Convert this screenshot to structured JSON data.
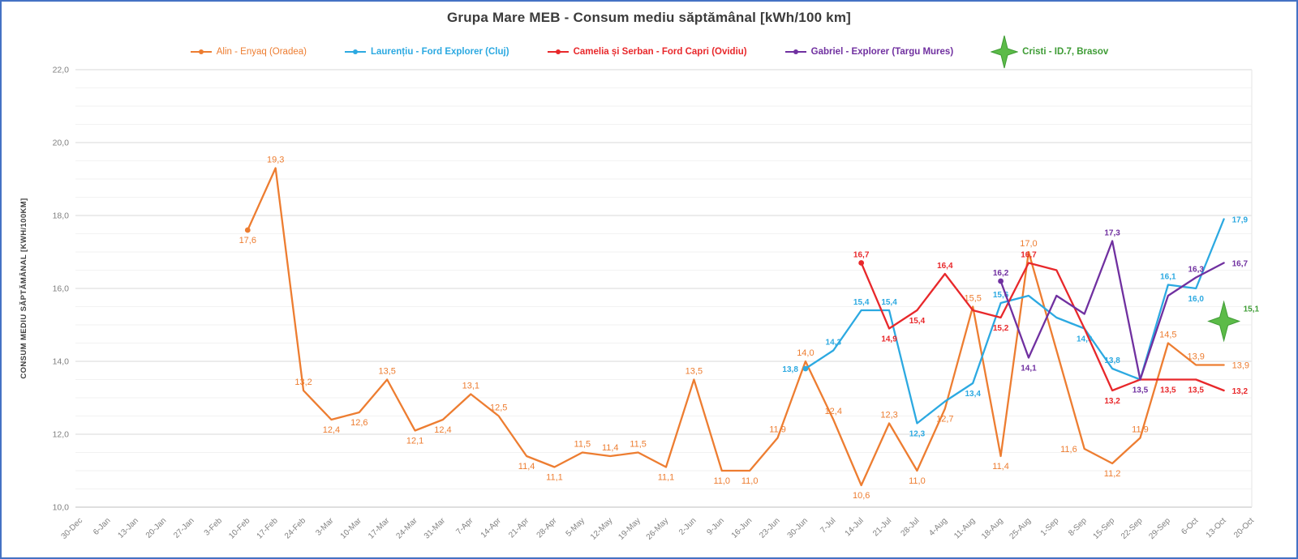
{
  "title": "Grupa Mare MEB - Consum mediu săptămânal [kWh/100 km]",
  "frame": {
    "border_color": "#4472C4"
  },
  "chart_data": {
    "type": "line",
    "title": "Grupa Mare MEB - Consum mediu săptămânal [kWh/100 km]",
    "xlabel": "",
    "ylabel": "CONSUM MEDIU SĂPTĂMÂNAL [KWH/100KM]",
    "ylim": [
      10,
      22
    ],
    "y_major_step": 2,
    "y_minor_step": 0.5,
    "y_tick_labels": [
      "22,0",
      "20,0",
      "18,0",
      "16,0",
      "14,0",
      "12,0",
      "10,0"
    ],
    "decimal_separator": "comma",
    "grid": "horizontal-major-and-minor",
    "legend_position": "top",
    "categories": [
      "30-Dec",
      "6-Jan",
      "13-Jan",
      "20-Jan",
      "27-Jan",
      "3-Feb",
      "10-Feb",
      "17-Feb",
      "24-Feb",
      "3-Mar",
      "10-Mar",
      "17-Mar",
      "24-Mar",
      "31-Mar",
      "7-Apr",
      "14-Apr",
      "21-Apr",
      "28-Apr",
      "5-May",
      "12-May",
      "19-May",
      "26-May",
      "2-Jun",
      "9-Jun",
      "16-Jun",
      "23-Jun",
      "30-Jun",
      "7-Jul",
      "14-Jul",
      "21-Jul",
      "28-Jul",
      "4-Aug",
      "11-Aug",
      "18-Aug",
      "25-Aug",
      "1-Sep",
      "8-Sep",
      "15-Sep",
      "22-Sep",
      "29-Sep",
      "6-Oct",
      "13-Oct",
      "20-Oct"
    ],
    "label_pos_codes": {
      "a": "above",
      "b": "below",
      "l": "left",
      "r": "right",
      "": "no label shown (value estimated from line bend)"
    },
    "series": [
      {
        "name": "Alin - Enyaq (Oradea)",
        "color": "#ED7D31",
        "marker": "dot-first",
        "label_weight": "normal",
        "points": [
          [
            6,
            17.6,
            "b"
          ],
          [
            7,
            19.3,
            "a"
          ],
          [
            8,
            13.2,
            "a"
          ],
          [
            9,
            12.4,
            "b"
          ],
          [
            10,
            12.6,
            "b"
          ],
          [
            11,
            13.5,
            "a"
          ],
          [
            12,
            12.1,
            "b"
          ],
          [
            13,
            12.4,
            "b"
          ],
          [
            14,
            13.1,
            "a"
          ],
          [
            15,
            12.5,
            "a"
          ],
          [
            16,
            11.4,
            "b"
          ],
          [
            17,
            11.1,
            "b"
          ],
          [
            18,
            11.5,
            "a"
          ],
          [
            19,
            11.4,
            "a"
          ],
          [
            20,
            11.5,
            "a"
          ],
          [
            21,
            11.1,
            "b"
          ],
          [
            22,
            13.5,
            "a"
          ],
          [
            23,
            11.0,
            "b"
          ],
          [
            24,
            11.0,
            "b"
          ],
          [
            25,
            11.9,
            "a"
          ],
          [
            26,
            14.0,
            "a"
          ],
          [
            27,
            12.4,
            "a"
          ],
          [
            28,
            10.6,
            "b"
          ],
          [
            29,
            12.3,
            "a"
          ],
          [
            30,
            11.0,
            "b"
          ],
          [
            31,
            12.7,
            "b"
          ],
          [
            32,
            15.5,
            "a"
          ],
          [
            33,
            11.4,
            "b"
          ],
          [
            34,
            17.0,
            "a"
          ],
          [
            35,
            14.3,
            ""
          ],
          [
            36,
            11.6,
            "l"
          ],
          [
            37,
            11.2,
            "b"
          ],
          [
            38,
            11.9,
            "a"
          ],
          [
            39,
            14.5,
            "a"
          ],
          [
            40,
            13.9,
            "a"
          ],
          [
            41,
            13.9,
            "r"
          ]
        ]
      },
      {
        "name": "Laurențiu - Ford Explorer (Cluj)",
        "color": "#2CA9E1",
        "marker": "dot-first",
        "label_weight": "bold",
        "points": [
          [
            26,
            13.8,
            "l"
          ],
          [
            27,
            14.3,
            "a"
          ],
          [
            28,
            15.4,
            "a"
          ],
          [
            29,
            15.4,
            "a"
          ],
          [
            30,
            12.3,
            "b"
          ],
          [
            31,
            12.9,
            ""
          ],
          [
            32,
            13.4,
            "b"
          ],
          [
            33,
            15.6,
            "a"
          ],
          [
            34,
            15.8,
            ""
          ],
          [
            35,
            15.2,
            ""
          ],
          [
            36,
            14.9,
            "b"
          ],
          [
            37,
            13.8,
            "a"
          ],
          [
            38,
            13.5,
            ""
          ],
          [
            39,
            16.1,
            "a"
          ],
          [
            40,
            16.0,
            "b"
          ],
          [
            41,
            17.9,
            "r"
          ]
        ]
      },
      {
        "name": "Camelia și Serban - Ford Capri (Ovidiu)",
        "color": "#E8282B",
        "marker": "dot-first",
        "label_weight": "bold",
        "points": [
          [
            28,
            16.7,
            "a"
          ],
          [
            29,
            14.9,
            "b"
          ],
          [
            30,
            15.4,
            "b"
          ],
          [
            31,
            16.4,
            "a"
          ],
          [
            32,
            15.4,
            ""
          ],
          [
            33,
            15.2,
            "b"
          ],
          [
            34,
            16.7,
            "a"
          ],
          [
            35,
            16.5,
            ""
          ],
          [
            36,
            14.9,
            ""
          ],
          [
            37,
            13.2,
            "b"
          ],
          [
            38,
            13.5,
            ""
          ],
          [
            39,
            13.5,
            "b"
          ],
          [
            40,
            13.5,
            "b"
          ],
          [
            41,
            13.2,
            "r"
          ]
        ]
      },
      {
        "name": "Gabriel - Explorer (Targu Mures)",
        "color": "#7030A0",
        "marker": "dot-first",
        "label_weight": "bold",
        "points": [
          [
            33,
            16.2,
            "a"
          ],
          [
            34,
            14.1,
            "b"
          ],
          [
            35,
            15.8,
            ""
          ],
          [
            36,
            15.3,
            ""
          ],
          [
            37,
            17.3,
            "a"
          ],
          [
            38,
            13.5,
            "b"
          ],
          [
            39,
            15.8,
            ""
          ],
          [
            40,
            16.3,
            "a"
          ],
          [
            41,
            16.7,
            "r"
          ]
        ]
      },
      {
        "name": "Cristi - ID.7, Brasov",
        "color": "#5CBB48",
        "label_color": "#3E9C35",
        "marker": "star",
        "label_weight": "bold",
        "points": [
          [
            41,
            15.1,
            "r"
          ]
        ]
      }
    ]
  }
}
